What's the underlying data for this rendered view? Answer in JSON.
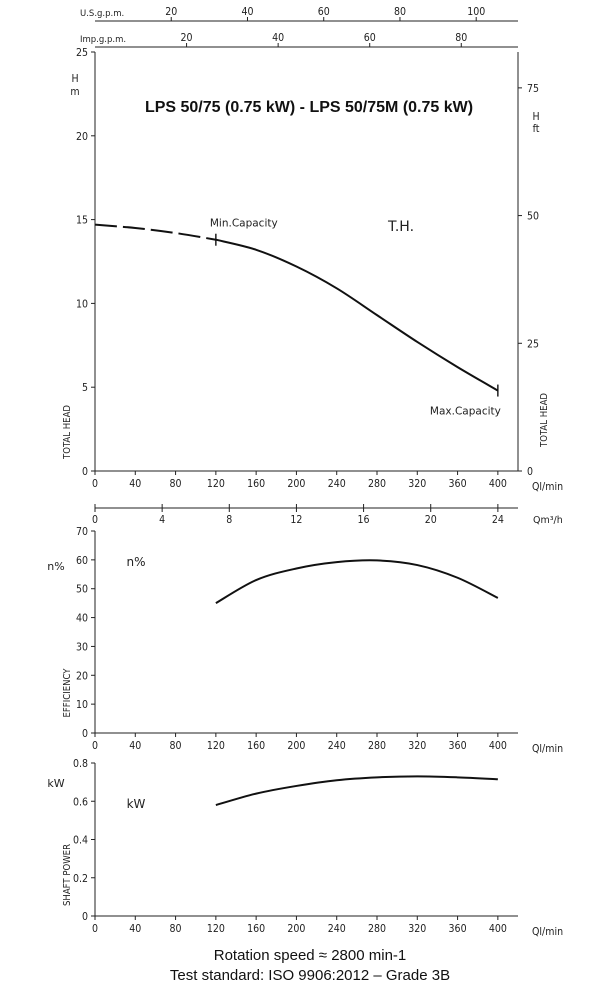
{
  "title": "LPS 50/75 (0.75 kW) - LPS 50/75M (0.75 kW)",
  "footer": {
    "line1": "Rotation speed ≈ 2800 min-1",
    "line2": "Test standard: ISO 9906:2012 – Grade 3B"
  },
  "top_axes": {
    "us_gpm": {
      "label": "U.S.g.p.m.",
      "ticks": [
        20,
        40,
        60,
        80,
        100
      ],
      "per_l_min": 3.785
    },
    "imp_gpm": {
      "label": "Imp.g.p.m.",
      "ticks": [
        20,
        40,
        60,
        80
      ],
      "per_l_min": 4.546
    }
  },
  "chart_data": [
    {
      "type": "line",
      "name": "head",
      "x_unit": "Ql/min",
      "ylabel": "TOTAL HEAD",
      "y_unit": "m",
      "y_unit_top": "H",
      "xlim": [
        0,
        420
      ],
      "ylim": [
        0,
        25
      ],
      "xticks": [
        0,
        40,
        80,
        120,
        160,
        200,
        240,
        280,
        320,
        360,
        400
      ],
      "yticks": [
        0,
        5,
        10,
        15,
        20,
        25
      ],
      "right_axis": {
        "label": "TOTAL HEAD",
        "unit_top": "H",
        "unit": "ft",
        "ticks": [
          0,
          25,
          50,
          75
        ],
        "m_per_unit": 0.3048
      },
      "curve_label": "T.H.",
      "series": [
        {
          "name": "T.H.",
          "style": "dashed",
          "x": [
            0,
            40,
            80,
            120
          ],
          "y": [
            14.7,
            14.5,
            14.2,
            13.8
          ]
        },
        {
          "name": "T.H.",
          "style": "solid",
          "x": [
            120,
            160,
            200,
            240,
            280,
            320,
            360,
            400
          ],
          "y": [
            13.8,
            13.2,
            12.2,
            10.9,
            9.3,
            7.7,
            6.2,
            4.8
          ]
        }
      ],
      "annotations": [
        {
          "text": "Min.Capacity",
          "x": 120,
          "y": 13.8
        },
        {
          "text": "Max.Capacity",
          "x": 400,
          "y": 4.8
        }
      ],
      "second_x_axis": {
        "unit": "Qm³/h",
        "ticks": [
          0,
          4,
          8,
          12,
          16,
          20,
          24
        ],
        "l_min_per_unit": 16.667
      }
    },
    {
      "type": "line",
      "name": "efficiency",
      "x_unit": "Ql/min",
      "ylabel": "EFFICIENCY",
      "y_unit": "n%",
      "xlim": [
        0,
        420
      ],
      "ylim": [
        0,
        70
      ],
      "xticks": [
        0,
        40,
        80,
        120,
        160,
        200,
        240,
        280,
        320,
        360,
        400
      ],
      "yticks": [
        0,
        10,
        20,
        30,
        40,
        50,
        60,
        70
      ],
      "curve_label": "n%",
      "series": [
        {
          "name": "n%",
          "style": "solid",
          "x": [
            120,
            160,
            200,
            240,
            280,
            320,
            360,
            400
          ],
          "y": [
            45,
            53,
            57,
            59.2,
            59.8,
            58.2,
            53.8,
            46.8
          ]
        }
      ]
    },
    {
      "type": "line",
      "name": "shaft_power",
      "x_unit": "Ql/min",
      "ylabel": "SHAFT POWER",
      "y_unit": "kW",
      "xlim": [
        0,
        420
      ],
      "ylim": [
        0,
        0.8
      ],
      "xticks": [
        0,
        40,
        80,
        120,
        160,
        200,
        240,
        280,
        320,
        360,
        400
      ],
      "yticks": [
        0,
        0.2,
        0.4,
        0.6,
        0.8
      ],
      "curve_label": "kW",
      "series": [
        {
          "name": "kW",
          "style": "solid",
          "x": [
            120,
            160,
            200,
            240,
            280,
            320,
            360,
            400
          ],
          "y": [
            0.58,
            0.64,
            0.68,
            0.71,
            0.725,
            0.73,
            0.725,
            0.715
          ]
        }
      ]
    }
  ]
}
